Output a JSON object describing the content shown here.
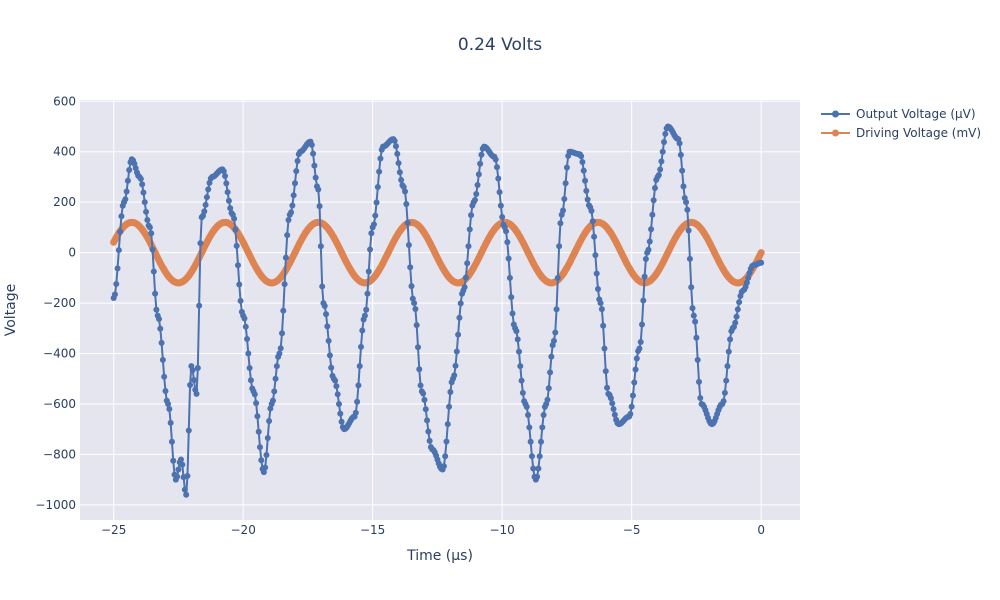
{
  "chart_data": {
    "type": "line",
    "title": "0.24 Volts",
    "xlabel": "Time (μs)",
    "ylabel": "Voltage",
    "xlim": [
      -26.3,
      1.5
    ],
    "ylim": [
      -1060,
      605
    ],
    "x_ticks": [
      -25,
      -20,
      -15,
      -10,
      -5,
      0
    ],
    "x_tick_labels": [
      "−25",
      "−20",
      "−15",
      "−10",
      "−5",
      "0"
    ],
    "y_ticks": [
      -1000,
      -800,
      -600,
      -400,
      -200,
      0,
      200,
      400,
      600
    ],
    "y_tick_labels": [
      "−1000",
      "−800",
      "−600",
      "−400",
      "−200",
      "0",
      "200",
      "400",
      "600"
    ],
    "grid": true,
    "legend_position": "top-right",
    "series": [
      {
        "name": "Output Voltage (μV)",
        "color": "#4c72b0",
        "x": [
          -25.0,
          -24.6,
          -24.3,
          -24.0,
          -23.6,
          -23.3,
          -22.9,
          -22.6,
          -22.4,
          -22.2,
          -22.0,
          -21.8,
          -21.6,
          -21.2,
          -20.8,
          -20.4,
          -20.0,
          -19.6,
          -19.2,
          -18.9,
          -18.6,
          -18.2,
          -17.8,
          -17.4,
          -17.1,
          -16.9,
          -16.5,
          -16.1,
          -15.7,
          -15.3,
          -15.0,
          -14.6,
          -14.2,
          -13.8,
          -13.4,
          -13.1,
          -12.7,
          -12.3,
          -11.9,
          -11.5,
          -11.1,
          -10.7,
          -10.3,
          -9.9,
          -9.5,
          -9.1,
          -8.7,
          -8.3,
          -8.0,
          -7.7,
          -7.4,
          -7.0,
          -6.6,
          -6.2,
          -5.9,
          -5.5,
          -5.1,
          -4.7,
          -4.4,
          -4.0,
          -3.6,
          -3.2,
          -2.9,
          -2.6,
          -2.3,
          -1.9,
          -1.5,
          -1.1,
          -0.7,
          -0.3,
          0.0
        ],
        "values": [
          -180,
          200,
          370,
          300,
          100,
          -250,
          -600,
          -900,
          -820,
          -960,
          -450,
          -560,
          140,
          300,
          330,
          150,
          -250,
          -550,
          -870,
          -600,
          -400,
          150,
          400,
          440,
          250,
          -200,
          -500,
          -700,
          -650,
          -250,
          100,
          420,
          450,
          260,
          -200,
          -550,
          -780,
          -860,
          -500,
          -150,
          200,
          420,
          380,
          100,
          -300,
          -600,
          -900,
          -600,
          -350,
          150,
          400,
          390,
          180,
          -200,
          -560,
          -680,
          -650,
          -380,
          0,
          300,
          500,
          450,
          200,
          -250,
          -600,
          -680,
          -600,
          -300,
          -150,
          -50,
          -40
        ]
      },
      {
        "name": "Driving Voltage (mV)",
        "color": "#dd8452",
        "amplitude": 120,
        "period": 3.6,
        "x_range": [
          -25,
          0
        ]
      }
    ]
  }
}
